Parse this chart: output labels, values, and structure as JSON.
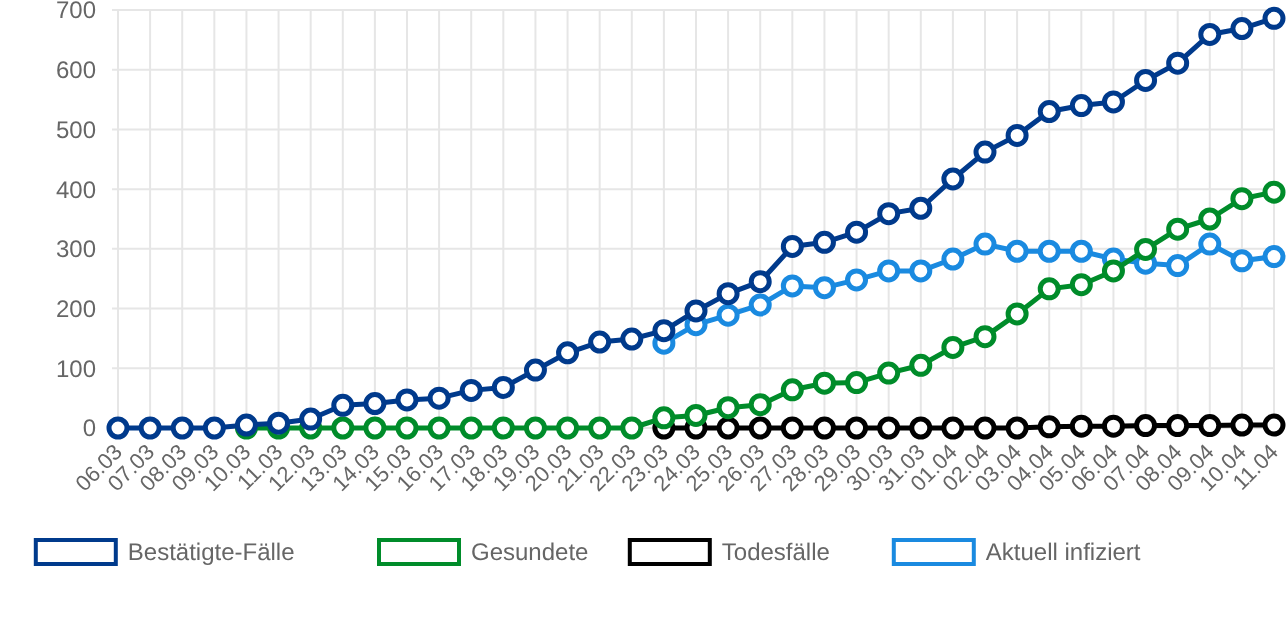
{
  "chart_data": {
    "type": "line",
    "categories": [
      "06.03",
      "07.03",
      "08.03",
      "09.03",
      "10.03",
      "11.03",
      "12.03",
      "13.03",
      "14.03",
      "15.03",
      "16.03",
      "17.03",
      "18.03",
      "19.03",
      "20.03",
      "21.03",
      "22.03",
      "23.03",
      "24.03",
      "25.03",
      "26.03",
      "27.03",
      "28.03",
      "29.03",
      "30.03",
      "31.03",
      "01.04",
      "02.04",
      "03.04",
      "04.04",
      "05.04",
      "06.04",
      "07.04",
      "08.04",
      "09.04",
      "10.04",
      "11.04"
    ],
    "ylim": [
      0,
      700
    ],
    "yticks": [
      0,
      100,
      200,
      300,
      400,
      500,
      600,
      700
    ],
    "grid": true,
    "legend": "bottom",
    "marker": "circle",
    "line_style": "solid",
    "series": [
      {
        "name": "Bestätigte-Fälle",
        "color": "#003a8c",
        "values": [
          0,
          0,
          0,
          0,
          5,
          8,
          15,
          38,
          41,
          47,
          50,
          63,
          68,
          97,
          126,
          144,
          149,
          163,
          196,
          225,
          245,
          304,
          311,
          328,
          359,
          368,
          417,
          462,
          490,
          530,
          540,
          546,
          582,
          611,
          659,
          669,
          686
        ]
      },
      {
        "name": "Gesundete",
        "color": "#008c2a",
        "values": [
          null,
          null,
          null,
          null,
          0,
          0,
          0,
          0,
          0,
          0,
          0,
          0,
          0,
          0,
          0,
          0,
          0,
          17,
          21,
          34,
          39,
          64,
          75,
          76,
          92,
          105,
          135,
          153,
          191,
          233,
          240,
          263,
          299,
          333,
          350,
          384,
          395
        ]
      },
      {
        "name": "Todesfälle",
        "color": "#000000",
        "values": [
          null,
          null,
          null,
          null,
          null,
          null,
          null,
          null,
          null,
          null,
          null,
          null,
          null,
          null,
          null,
          null,
          null,
          0,
          0,
          0,
          0,
          0,
          0,
          0,
          0,
          0,
          0,
          0,
          0,
          2,
          3,
          3,
          4,
          4,
          4,
          5,
          5
        ]
      },
      {
        "name": "Aktuell infiziert",
        "color": "#1a8ae0",
        "values": [
          null,
          null,
          null,
          null,
          null,
          null,
          null,
          null,
          null,
          null,
          null,
          null,
          null,
          null,
          null,
          null,
          null,
          142,
          173,
          189,
          206,
          238,
          235,
          248,
          263,
          263,
          283,
          308,
          296,
          296,
          296,
          283,
          276,
          272,
          308,
          280,
          287
        ]
      }
    ]
  }
}
